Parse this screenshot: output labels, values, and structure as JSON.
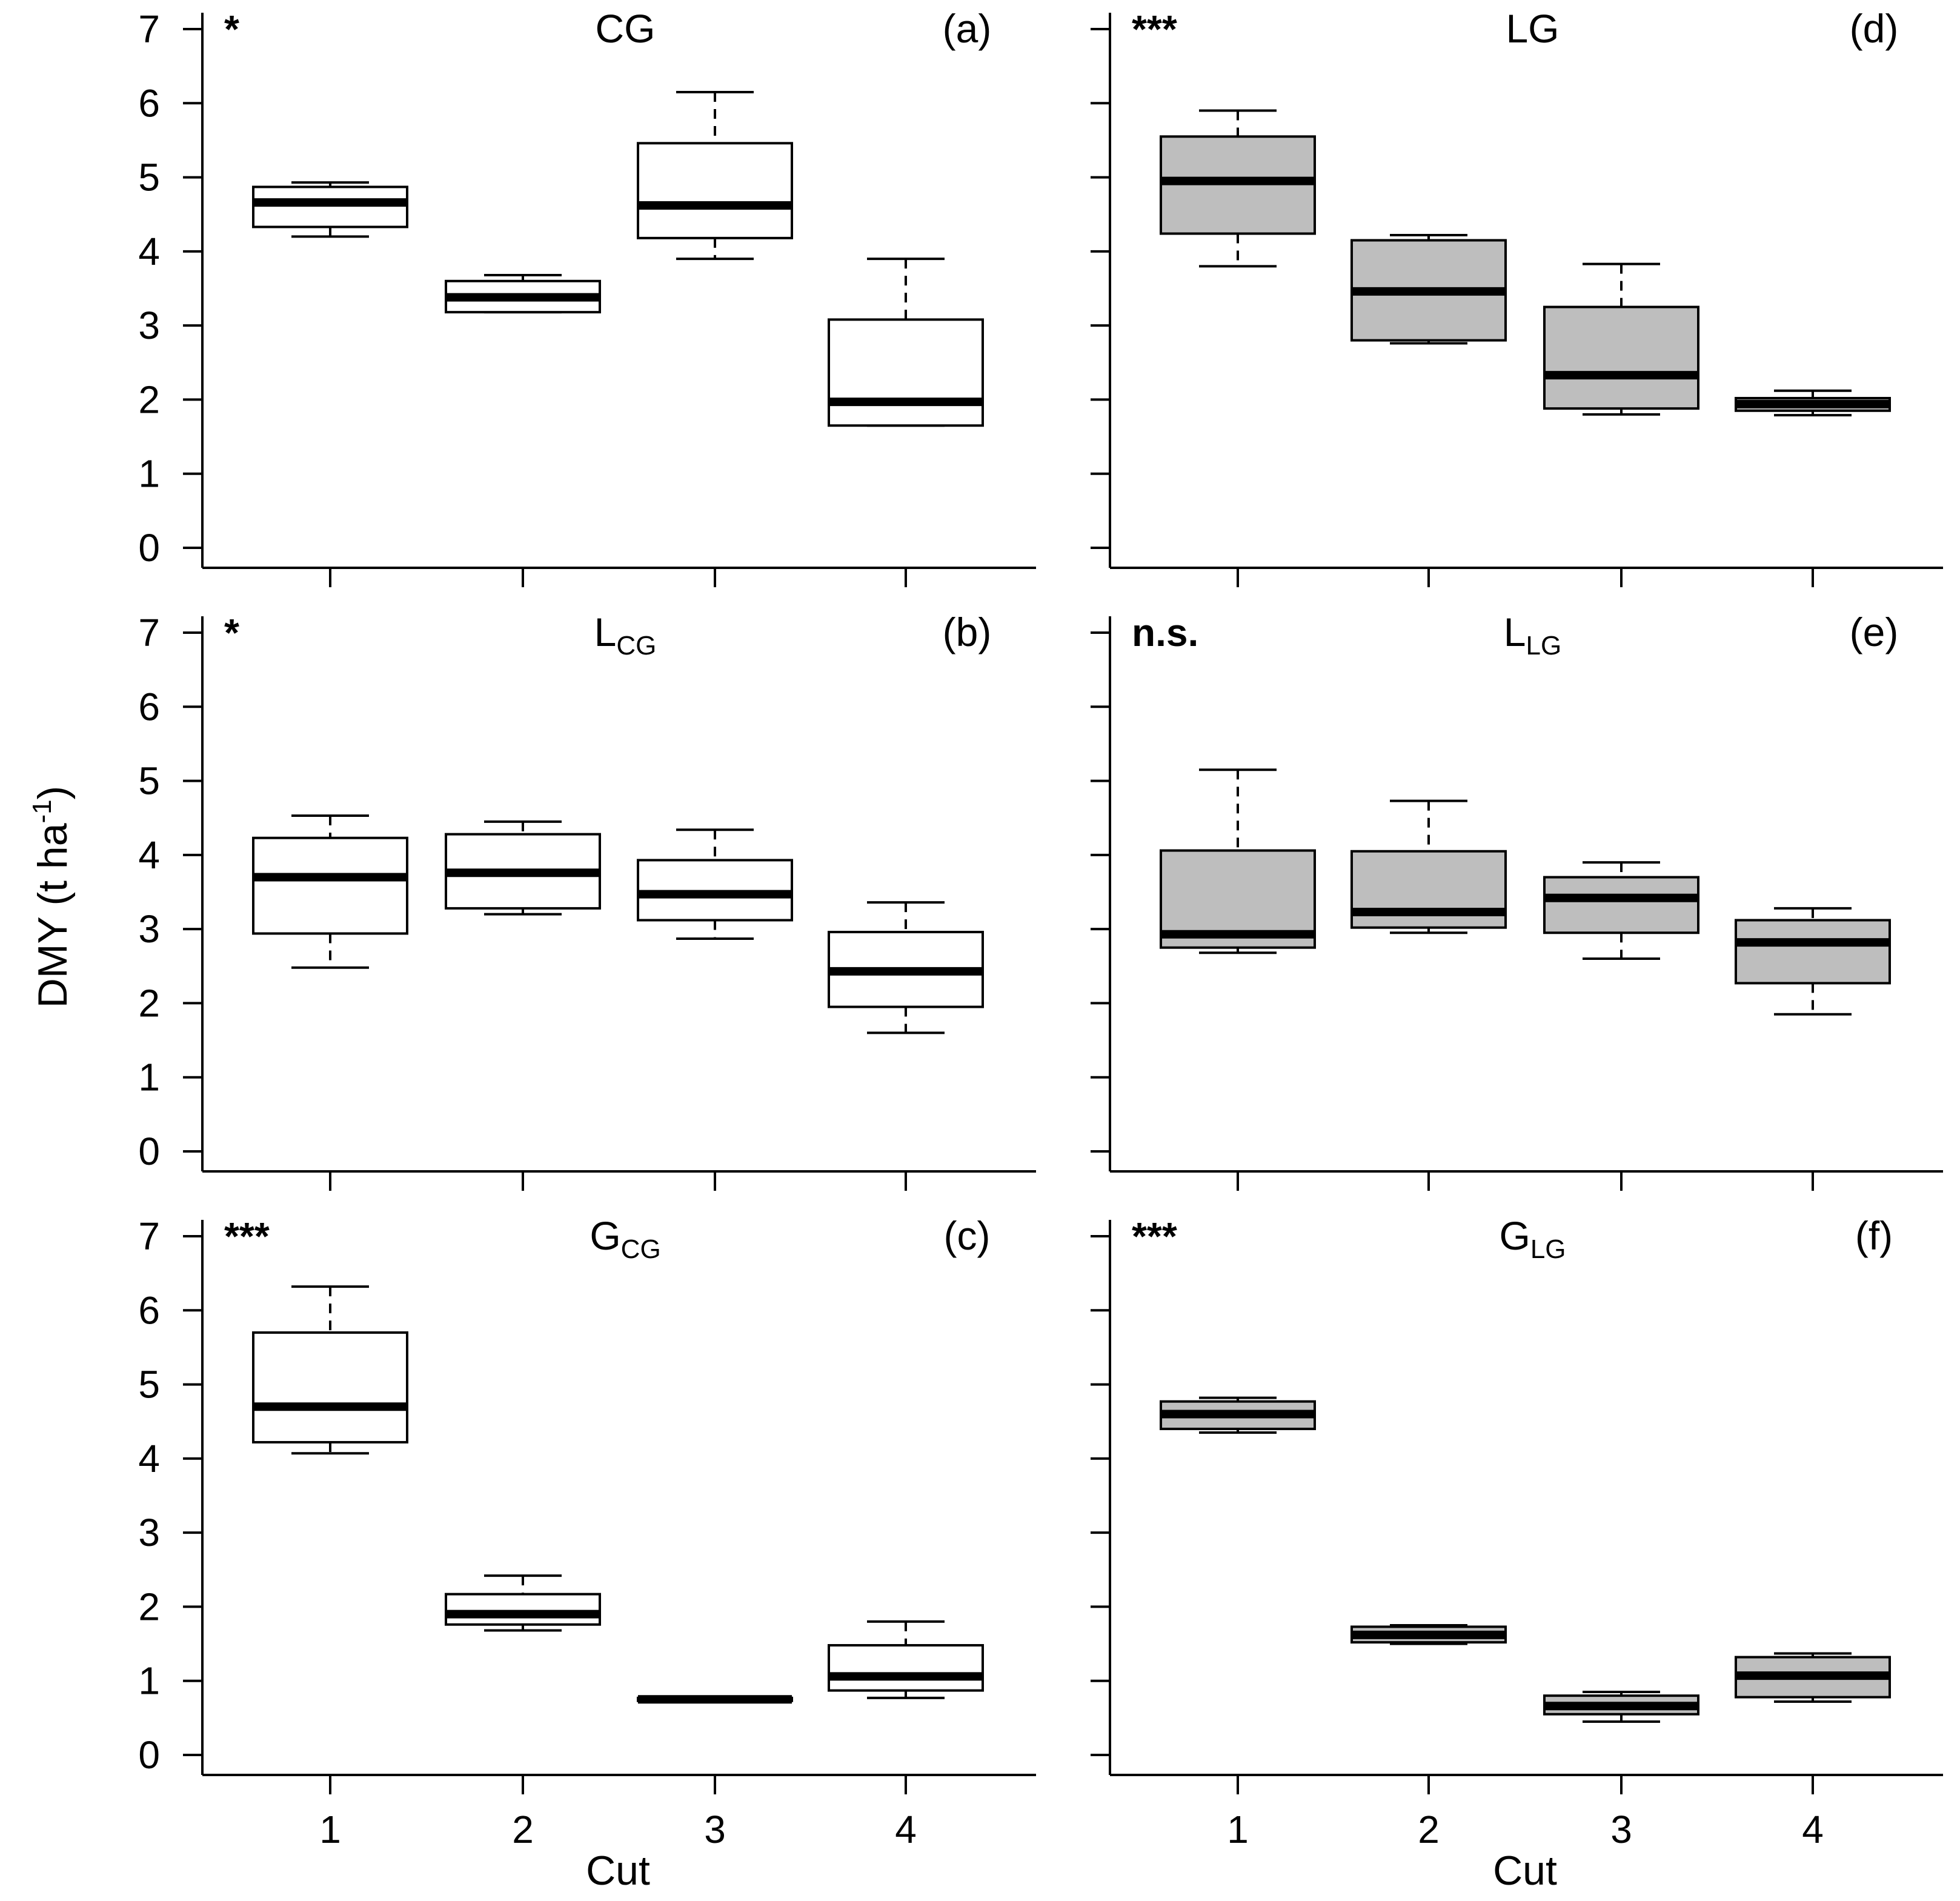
{
  "figure": {
    "ylabel_main": "DMY (t ha",
    "ylabel_sup": "-1",
    "ylabel_close": ")",
    "xlabel": "Cut",
    "colors": {
      "white_box": "#ffffff",
      "gray_box": "#bebebe",
      "ink": "#000000"
    }
  },
  "chart_data": [
    {
      "type": "box",
      "title_main": "CG",
      "title_sub": "",
      "significance": "*",
      "panel_letter": "(a)",
      "fill": "white",
      "categories": [
        "1",
        "2",
        "3",
        "4"
      ],
      "yticks": [
        "0",
        "1",
        "2",
        "3",
        "4",
        "5",
        "6",
        "7"
      ],
      "ylim": [
        0,
        7
      ],
      "boxes": [
        {
          "whisker_low": 4.2,
          "q1": 4.33,
          "median": 4.66,
          "q3": 4.87,
          "whisker_high": 4.93
        },
        {
          "whisker_low": 3.18,
          "q1": 3.18,
          "median": 3.38,
          "q3": 3.6,
          "whisker_high": 3.68
        },
        {
          "whisker_low": 3.9,
          "q1": 4.18,
          "median": 4.62,
          "q3": 5.46,
          "whisker_high": 6.15
        },
        {
          "whisker_low": 1.65,
          "q1": 1.65,
          "median": 1.97,
          "q3": 3.08,
          "whisker_high": 3.9
        }
      ]
    },
    {
      "type": "box",
      "title_main": "L",
      "title_sub": "CG",
      "significance": "*",
      "panel_letter": "(b)",
      "fill": "white",
      "categories": [
        "1",
        "2",
        "3",
        "4"
      ],
      "yticks": [
        "0",
        "1",
        "2",
        "3",
        "4",
        "5",
        "6",
        "7"
      ],
      "ylim": [
        0,
        7
      ],
      "boxes": [
        {
          "whisker_low": 2.48,
          "q1": 2.94,
          "median": 3.7,
          "q3": 4.23,
          "whisker_high": 4.53
        },
        {
          "whisker_low": 3.2,
          "q1": 3.28,
          "median": 3.76,
          "q3": 4.28,
          "whisker_high": 4.45
        },
        {
          "whisker_low": 2.87,
          "q1": 3.12,
          "median": 3.47,
          "q3": 3.93,
          "whisker_high": 4.34
        },
        {
          "whisker_low": 1.6,
          "q1": 1.95,
          "median": 2.43,
          "q3": 2.96,
          "whisker_high": 3.36
        }
      ]
    },
    {
      "type": "box",
      "title_main": "G",
      "title_sub": "CG",
      "significance": "***",
      "panel_letter": "(c)",
      "fill": "white",
      "categories": [
        "1",
        "2",
        "3",
        "4"
      ],
      "yticks": [
        "0",
        "1",
        "2",
        "3",
        "4",
        "5",
        "6",
        "7"
      ],
      "ylim": [
        0,
        7
      ],
      "boxes": [
        {
          "whisker_low": 4.07,
          "q1": 4.22,
          "median": 4.7,
          "q3": 5.7,
          "whisker_high": 6.32
        },
        {
          "whisker_low": 1.68,
          "q1": 1.76,
          "median": 1.9,
          "q3": 2.17,
          "whisker_high": 2.42
        },
        {
          "whisker_low": 0.73,
          "q1": 0.73,
          "median": 0.75,
          "q3": 0.77,
          "whisker_high": 0.77
        },
        {
          "whisker_low": 0.77,
          "q1": 0.87,
          "median": 1.06,
          "q3": 1.48,
          "whisker_high": 1.8
        }
      ]
    },
    {
      "type": "box",
      "title_main": "LG",
      "title_sub": "",
      "significance": "***",
      "panel_letter": "(d)",
      "fill": "gray",
      "categories": [
        "1",
        "2",
        "3",
        "4"
      ],
      "yticks": [
        "",
        "",
        "",
        "",
        "",
        "",
        "",
        ""
      ],
      "ylim": [
        0,
        7
      ],
      "boxes": [
        {
          "whisker_low": 3.8,
          "q1": 4.24,
          "median": 4.95,
          "q3": 5.55,
          "whisker_high": 5.9
        },
        {
          "whisker_low": 2.76,
          "q1": 2.8,
          "median": 3.46,
          "q3": 4.15,
          "whisker_high": 4.22
        },
        {
          "whisker_low": 1.8,
          "q1": 1.88,
          "median": 2.33,
          "q3": 3.25,
          "whisker_high": 3.83
        },
        {
          "whisker_low": 1.79,
          "q1": 1.85,
          "median": 1.94,
          "q3": 2.02,
          "whisker_high": 2.12
        }
      ]
    },
    {
      "type": "box",
      "title_main": "L",
      "title_sub": "LG",
      "significance": "n.s.",
      "panel_letter": "(e)",
      "fill": "gray",
      "categories": [
        "1",
        "2",
        "3",
        "4"
      ],
      "yticks": [
        "",
        "",
        "",
        "",
        "",
        "",
        "",
        ""
      ],
      "ylim": [
        0,
        7
      ],
      "boxes": [
        {
          "whisker_low": 2.68,
          "q1": 2.75,
          "median": 2.93,
          "q3": 4.06,
          "whisker_high": 5.15
        },
        {
          "whisker_low": 2.95,
          "q1": 3.02,
          "median": 3.23,
          "q3": 4.05,
          "whisker_high": 4.73
        },
        {
          "whisker_low": 2.6,
          "q1": 2.95,
          "median": 3.42,
          "q3": 3.7,
          "whisker_high": 3.9
        },
        {
          "whisker_low": 1.85,
          "q1": 2.27,
          "median": 2.82,
          "q3": 3.12,
          "whisker_high": 3.28
        }
      ]
    },
    {
      "type": "box",
      "title_main": "G",
      "title_sub": "LG",
      "significance": "***",
      "panel_letter": "(f)",
      "fill": "gray",
      "categories": [
        "1",
        "2",
        "3",
        "4"
      ],
      "yticks": [
        "",
        "",
        "",
        "",
        "",
        "",
        "",
        ""
      ],
      "ylim": [
        0,
        7
      ],
      "boxes": [
        {
          "whisker_low": 4.35,
          "q1": 4.4,
          "median": 4.6,
          "q3": 4.77,
          "whisker_high": 4.82
        },
        {
          "whisker_low": 1.5,
          "q1": 1.52,
          "median": 1.62,
          "q3": 1.73,
          "whisker_high": 1.75
        },
        {
          "whisker_low": 0.45,
          "q1": 0.55,
          "median": 0.66,
          "q3": 0.8,
          "whisker_high": 0.85
        },
        {
          "whisker_low": 0.72,
          "q1": 0.78,
          "median": 1.07,
          "q3": 1.32,
          "whisker_high": 1.37
        }
      ]
    }
  ]
}
